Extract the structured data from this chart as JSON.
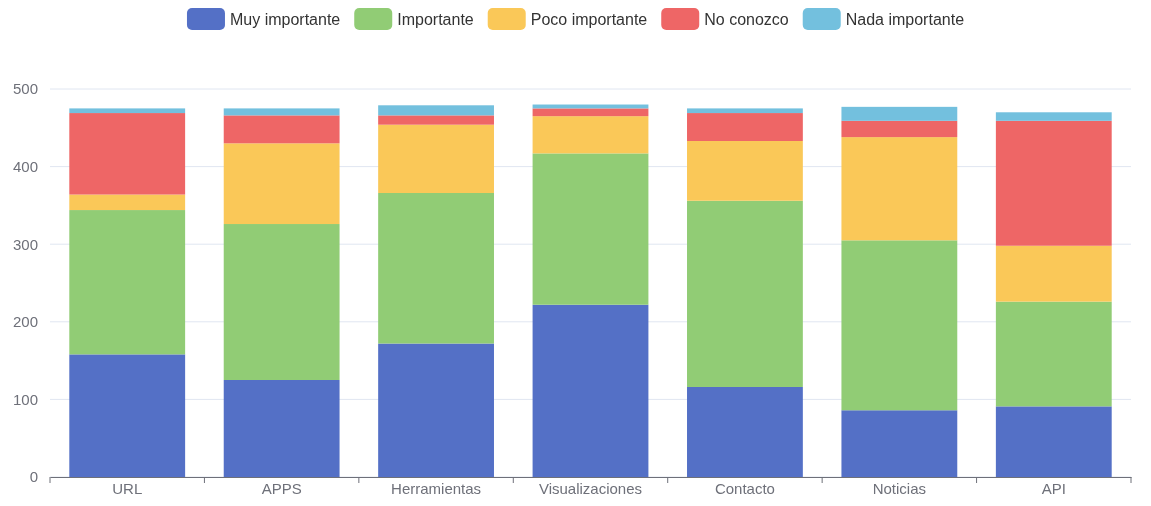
{
  "chart_data": {
    "type": "bar",
    "stacked": true,
    "categories": [
      "URL",
      "APPS",
      "Herramientas",
      "Visualizaciones",
      "Contacto",
      "Noticias",
      "API"
    ],
    "series": [
      {
        "name": "Muy importante",
        "color": "#5470c6",
        "values": [
          158,
          125,
          172,
          222,
          116,
          86,
          91
        ]
      },
      {
        "name": "Importante",
        "color": "#91cc75",
        "values": [
          186,
          201,
          194,
          195,
          240,
          219,
          135
        ]
      },
      {
        "name": "Poco importante",
        "color": "#fac858",
        "values": [
          20,
          104,
          88,
          48,
          77,
          133,
          72
        ]
      },
      {
        "name": "No conozco",
        "color": "#ee6666",
        "values": [
          105,
          36,
          12,
          10,
          36,
          21,
          161
        ]
      },
      {
        "name": "Nada importante",
        "color": "#73c0de",
        "values": [
          6,
          9,
          13,
          5,
          6,
          18,
          11
        ]
      }
    ],
    "ylim": [
      0,
      500
    ],
    "yticks": [
      0,
      100,
      200,
      300,
      400,
      500
    ],
    "grid": "y",
    "legend": "top"
  }
}
